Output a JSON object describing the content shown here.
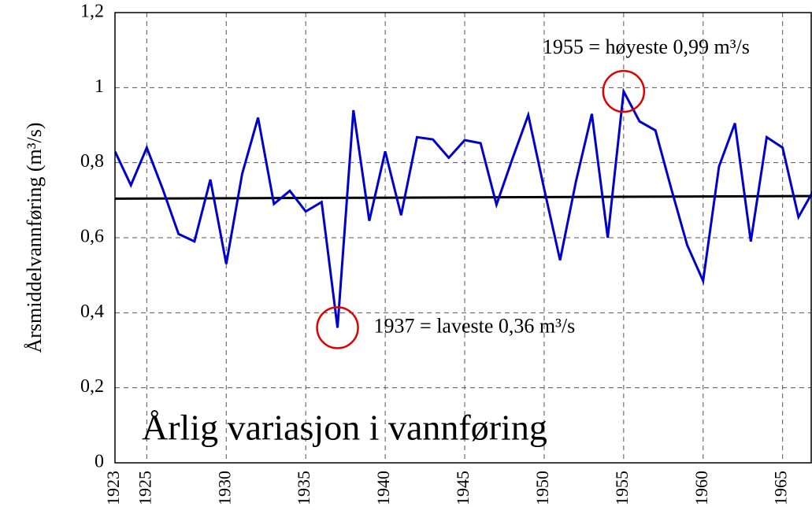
{
  "chart_data": {
    "type": "line",
    "title": "Årlig variasjon i vannføring",
    "y_label": "Årsmiddelvannføring (m³/s)",
    "grid": true,
    "xlim": [
      1923,
      1966.8
    ],
    "xticks": [
      1923,
      1925,
      1930,
      1935,
      1940,
      1945,
      1950,
      1955,
      1960,
      1965
    ],
    "ylim": [
      0,
      1.2
    ],
    "yticks": [
      0,
      {
        "value": 0.2,
        "label": "0,2"
      },
      {
        "value": 0.4,
        "label": "0,4"
      },
      {
        "value": 0.6,
        "label": "0,6"
      },
      {
        "value": 0.8,
        "label": "0,8"
      },
      1,
      {
        "value": 1.2,
        "label": "1,2"
      }
    ],
    "x": [
      1923,
      1924,
      1925,
      1926,
      1927,
      1928,
      1929,
      1930,
      1931,
      1932,
      1933,
      1934,
      1935,
      1936,
      1937,
      1938,
      1939,
      1940,
      1941,
      1942,
      1943,
      1944,
      1945,
      1946,
      1947,
      1948,
      1949,
      1950,
      1951,
      1952,
      1953,
      1954,
      1955,
      1956,
      1957,
      1958,
      1959,
      1960,
      1961,
      1962,
      1963,
      1964,
      1965,
      1966,
      1967
    ],
    "series": [
      {
        "color": "#0000cc",
        "values": [
          0.83,
          0.74,
          0.84,
          0.73,
          0.61,
          0.59,
          0.755,
          0.53,
          0.77,
          0.92,
          0.69,
          0.725,
          0.67,
          0.695,
          0.36,
          0.94,
          0.645,
          0.83,
          0.66,
          0.868,
          0.862,
          0.813,
          0.86,
          0.852,
          0.688,
          0.81,
          0.927,
          0.73,
          0.54,
          0.75,
          0.93,
          0.6,
          0.99,
          0.91,
          0.886,
          0.73,
          0.58,
          0.485,
          0.79,
          0.905,
          0.59,
          0.868,
          0.84,
          0.655,
          0.73
        ]
      }
    ],
    "trend": {
      "color": "#000000",
      "x": [
        1923,
        1967
      ],
      "values": [
        0.704,
        0.711
      ]
    },
    "annotations": [
      {
        "text": "1955 = høyeste 0,99 m³/s",
        "x": 1955,
        "y": 0.99,
        "color": "#e00000"
      },
      {
        "text": "1937 = laveste 0,36 m³/s",
        "x": 1937,
        "y": 0.36,
        "color": "#e00000"
      }
    ]
  }
}
